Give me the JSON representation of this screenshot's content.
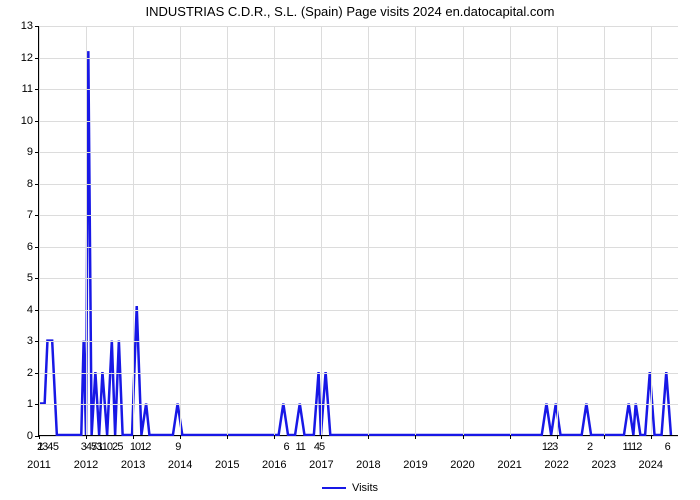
{
  "chart": {
    "type": "line",
    "title": "INDUSTRIAS C.D.R., S.L. (Spain) Page visits 2024 en.datocapital.com",
    "title_fontsize": 13,
    "background_color": "#ffffff",
    "grid_color": "#dcdcdc",
    "axis_color": "#000000",
    "line_color": "#1818e6",
    "line_width": 2.5,
    "ylim": [
      0,
      13
    ],
    "ytick_step": 1,
    "yticks": [
      0,
      1,
      2,
      3,
      4,
      5,
      6,
      7,
      8,
      9,
      10,
      11,
      12,
      13
    ],
    "xlim": [
      2011,
      2024.6
    ],
    "xticks_years": [
      2011,
      2012,
      2013,
      2014,
      2015,
      2016,
      2017,
      2018,
      2019,
      2020,
      2021,
      2022,
      2023,
      2024
    ],
    "xticks_minor": [
      {
        "pos": 2011.02,
        "label": "1"
      },
      {
        "pos": 2011.12,
        "label": "234"
      },
      {
        "pos": 2011.35,
        "label": "5"
      },
      {
        "pos": 2012.05,
        "label": "345"
      },
      {
        "pos": 2012.22,
        "label": "73"
      },
      {
        "pos": 2012.45,
        "label": "1102"
      },
      {
        "pos": 2012.72,
        "label": "5"
      },
      {
        "pos": 2013.15,
        "label": "1012"
      },
      {
        "pos": 2013.95,
        "label": "9"
      },
      {
        "pos": 2016.25,
        "label": "6"
      },
      {
        "pos": 2016.55,
        "label": "11"
      },
      {
        "pos": 2016.95,
        "label": "45"
      },
      {
        "pos": 2021.85,
        "label": "123"
      },
      {
        "pos": 2022.7,
        "label": "2"
      },
      {
        "pos": 2023.6,
        "label": "1112"
      },
      {
        "pos": 2024.35,
        "label": "6"
      }
    ],
    "legend_label": "Visits",
    "values": [
      {
        "x": 2011.0,
        "y": 1.0
      },
      {
        "x": 2011.12,
        "y": 1.0
      },
      {
        "x": 2011.18,
        "y": 3.0
      },
      {
        "x": 2011.28,
        "y": 3.0
      },
      {
        "x": 2011.38,
        "y": 0.0
      },
      {
        "x": 2011.9,
        "y": 0.0
      },
      {
        "x": 2011.95,
        "y": 3.0
      },
      {
        "x": 2012.0,
        "y": 0.0
      },
      {
        "x": 2012.05,
        "y": 12.2
      },
      {
        "x": 2012.12,
        "y": 0.0
      },
      {
        "x": 2012.2,
        "y": 2.0
      },
      {
        "x": 2012.28,
        "y": 0.0
      },
      {
        "x": 2012.35,
        "y": 2.0
      },
      {
        "x": 2012.45,
        "y": 0.0
      },
      {
        "x": 2012.55,
        "y": 3.0
      },
      {
        "x": 2012.62,
        "y": 0.0
      },
      {
        "x": 2012.7,
        "y": 3.0
      },
      {
        "x": 2012.78,
        "y": 0.0
      },
      {
        "x": 2012.98,
        "y": 0.0
      },
      {
        "x": 2013.08,
        "y": 4.1
      },
      {
        "x": 2013.18,
        "y": 0.0
      },
      {
        "x": 2013.28,
        "y": 1.0
      },
      {
        "x": 2013.35,
        "y": 0.0
      },
      {
        "x": 2013.85,
        "y": 0.0
      },
      {
        "x": 2013.95,
        "y": 1.0
      },
      {
        "x": 2014.05,
        "y": 0.0
      },
      {
        "x": 2016.1,
        "y": 0.0
      },
      {
        "x": 2016.2,
        "y": 1.0
      },
      {
        "x": 2016.3,
        "y": 0.0
      },
      {
        "x": 2016.45,
        "y": 0.0
      },
      {
        "x": 2016.55,
        "y": 1.0
      },
      {
        "x": 2016.65,
        "y": 0.0
      },
      {
        "x": 2016.85,
        "y": 0.0
      },
      {
        "x": 2016.95,
        "y": 2.0
      },
      {
        "x": 2017.0,
        "y": 0.0
      },
      {
        "x": 2017.1,
        "y": 2.0
      },
      {
        "x": 2017.2,
        "y": 0.0
      },
      {
        "x": 2021.7,
        "y": 0.0
      },
      {
        "x": 2021.8,
        "y": 1.0
      },
      {
        "x": 2021.9,
        "y": 0.0
      },
      {
        "x": 2022.0,
        "y": 1.0
      },
      {
        "x": 2022.1,
        "y": 0.0
      },
      {
        "x": 2022.55,
        "y": 0.0
      },
      {
        "x": 2022.65,
        "y": 1.0
      },
      {
        "x": 2022.75,
        "y": 0.0
      },
      {
        "x": 2023.45,
        "y": 0.0
      },
      {
        "x": 2023.55,
        "y": 1.0
      },
      {
        "x": 2023.65,
        "y": 0.0
      },
      {
        "x": 2023.7,
        "y": 1.0
      },
      {
        "x": 2023.8,
        "y": 0.0
      },
      {
        "x": 2023.9,
        "y": 0.0
      },
      {
        "x": 2024.0,
        "y": 2.0
      },
      {
        "x": 2024.1,
        "y": 0.0
      },
      {
        "x": 2024.25,
        "y": 0.0
      },
      {
        "x": 2024.35,
        "y": 2.0
      },
      {
        "x": 2024.45,
        "y": 0.0
      }
    ]
  }
}
